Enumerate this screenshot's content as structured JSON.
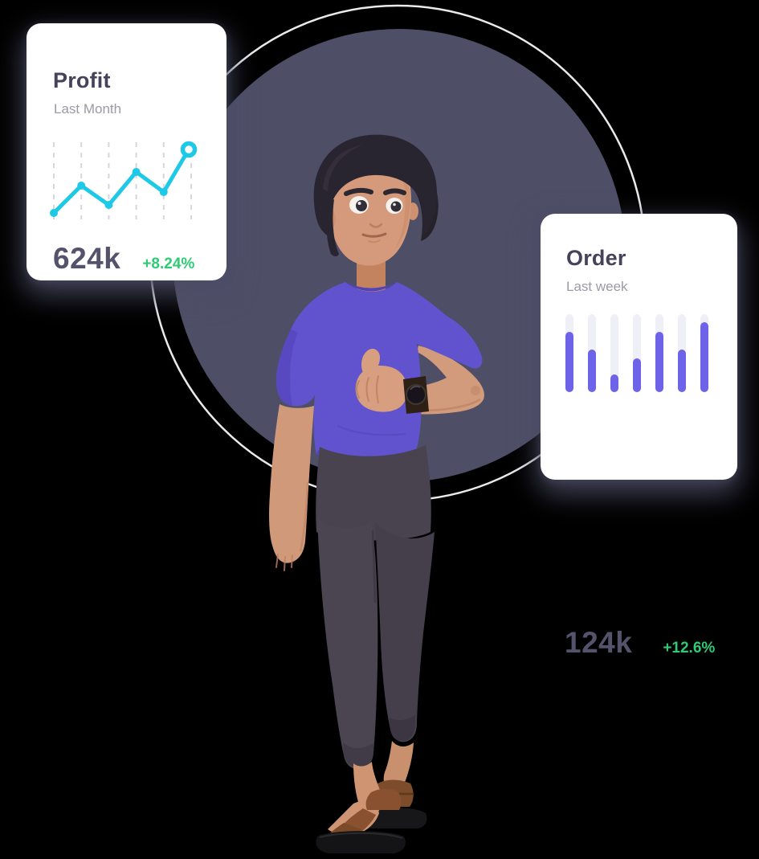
{
  "illustration": {
    "character": "3d-man-purple-tshirt-thumbs-up",
    "background_circle_color": "#4e4e67",
    "ring_color": "#eaeaee"
  },
  "colors": {
    "card_background": "#ffffff",
    "title_text": "#454259",
    "subtitle_text": "#9b9aa6",
    "value_text": "#55536b",
    "positive_green": "#2fca74",
    "line_cyan": "#1ec9e8",
    "gridline_gray": "#d6d6dc",
    "bar_purple": "#6c63e8",
    "bar_track": "#efeff8",
    "shirt_purple": "#6153cd",
    "skin": "#d29b7b",
    "hair": "#282430",
    "pants": "#4a4550"
  },
  "cards": {
    "profit": {
      "title": "Profit",
      "subtitle": "Last Month",
      "value": "624k",
      "delta": "+8.24%"
    },
    "order": {
      "title": "Order",
      "subtitle": "Last week",
      "value": "124k",
      "delta": "+12.6%"
    }
  },
  "chart_data": [
    {
      "type": "line",
      "title": "Profit",
      "subtitle": "Last Month",
      "x": [
        1,
        2,
        3,
        4,
        5,
        6
      ],
      "values": [
        10,
        44,
        20,
        61,
        36,
        89
      ],
      "ylim": [
        0,
        100
      ],
      "xlabel": "",
      "ylabel": "",
      "grid": "dashed-vertical",
      "legend": "none",
      "line_color": "#1ec9e8",
      "marker": "dot",
      "last_point_marker": "open-ring",
      "summary_value": "624k",
      "change": "+8.24%"
    },
    {
      "type": "bar",
      "title": "Order",
      "subtitle": "Last week",
      "categories": [
        1,
        2,
        3,
        4,
        5,
        6,
        7
      ],
      "values": [
        77,
        55,
        23,
        43,
        77,
        55,
        90
      ],
      "ylim": [
        0,
        100
      ],
      "xlabel": "",
      "ylabel": "",
      "grid": "off",
      "legend": "none",
      "bar_color": "#6c63e8",
      "track_color": "#efeff8",
      "summary_value": "124k",
      "change": "+12.6%"
    }
  ]
}
